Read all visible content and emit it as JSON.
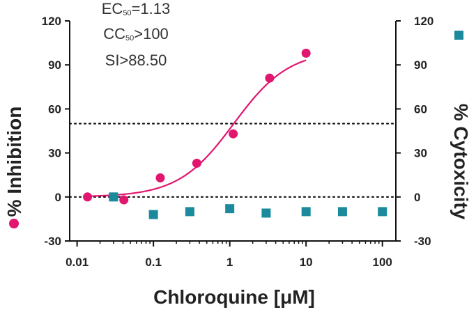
{
  "chart_data": {
    "type": "scatter",
    "xlabel": "Chloroquine [μM]",
    "ylabel_left": "% Inhibition",
    "ylabel_right": "% Cytoxicity",
    "x_scale": "log",
    "xlim": [
      0.008,
      150
    ],
    "ylim": [
      -30,
      120
    ],
    "x_ticks": [
      0.01,
      0.1,
      1,
      10,
      100
    ],
    "x_tick_labels": [
      "0.01",
      "0.1",
      "1",
      "10",
      "100"
    ],
    "y_ticks": [
      -30,
      0,
      30,
      60,
      90,
      120
    ],
    "y_tick_labels": [
      "-30",
      "0",
      "30",
      "60",
      "90",
      "120"
    ],
    "reference_lines": [
      0,
      50
    ],
    "annotations": {
      "ec_prefix": "EC",
      "ec_sub": "50",
      "ec_value": "=1.13",
      "cc_prefix": "CC",
      "cc_sub": "50",
      "cc_value": ">100",
      "si": "SI>88.50"
    },
    "colors": {
      "inhibition": "#E0166F",
      "cytotoxicity": "#1A8A9C",
      "reference": "#111111"
    },
    "series": [
      {
        "name": "% Inhibition",
        "marker": "circle",
        "x": [
          0.0137,
          0.041,
          0.123,
          0.37,
          1.11,
          3.33,
          10
        ],
        "y": [
          0,
          -2,
          13,
          23,
          43,
          81,
          98
        ]
      },
      {
        "name": "% Cytoxicity",
        "marker": "square",
        "x": [
          0.03,
          0.1,
          0.3,
          1,
          3,
          10,
          30,
          100
        ],
        "y": [
          0,
          -12,
          -10,
          -8,
          -11,
          -10,
          -10,
          -10
        ]
      }
    ],
    "fit": {
      "series": "% Inhibition",
      "model": "four-parameter logistic",
      "bottom": 0,
      "top": 100,
      "ec50": 1.13,
      "hill": 1.2,
      "x_range": [
        0.0137,
        10
      ]
    }
  }
}
